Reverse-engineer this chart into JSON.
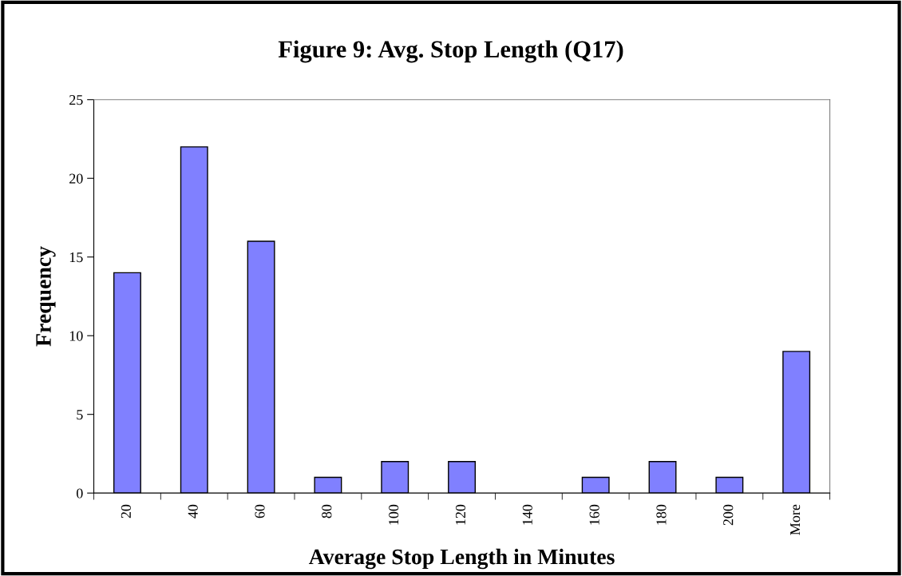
{
  "chart_data": {
    "type": "bar",
    "title": "Figure 9: Avg. Stop Length (Q17)",
    "xlabel": "Average Stop Length in Minutes",
    "ylabel": "Frequency",
    "categories": [
      "20",
      "40",
      "60",
      "80",
      "100",
      "120",
      "140",
      "160",
      "180",
      "200",
      "More"
    ],
    "values": [
      14,
      22,
      16,
      1,
      2,
      2,
      0,
      1,
      2,
      1,
      9
    ],
    "color": "#8080ff",
    "ylim": [
      0,
      25
    ],
    "yticks": [
      0,
      5,
      10,
      15,
      20,
      25
    ],
    "grid": false
  }
}
